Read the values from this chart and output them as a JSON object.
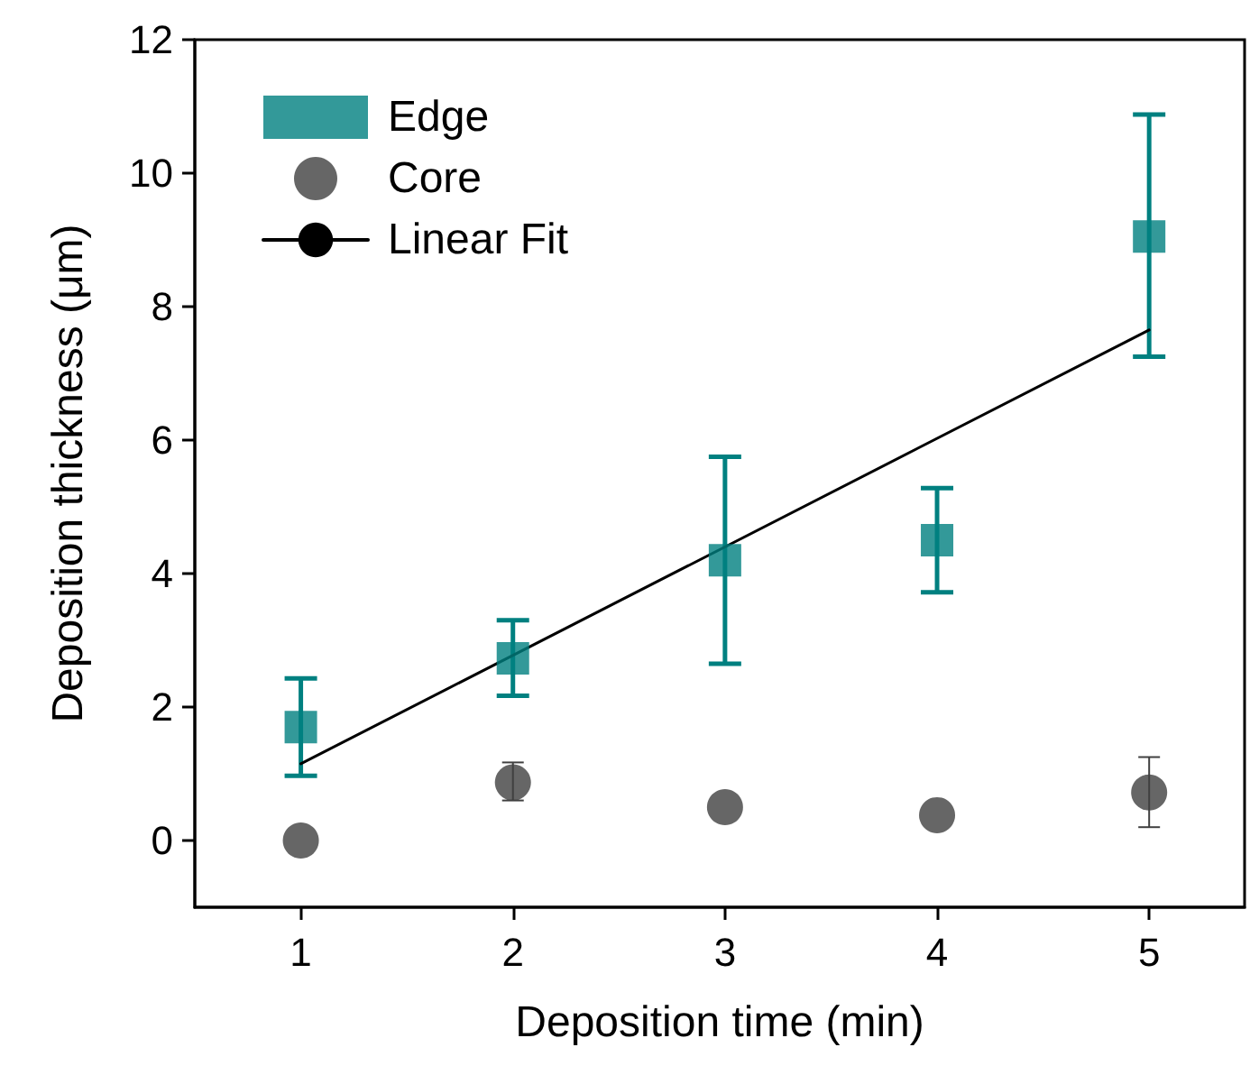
{
  "chart_data": {
    "type": "scatter",
    "xlabel": "Deposition time (min)",
    "ylabel": "Deposition thickness (μm)",
    "x": [
      1,
      2,
      3,
      4,
      5
    ],
    "series": [
      {
        "name": "Edge",
        "color": "#008080",
        "marker": "square",
        "values": [
          1.7,
          2.73,
          4.2,
          4.5,
          9.05
        ],
        "errors": [
          [
            0.97,
            2.43
          ],
          [
            2.17,
            3.3
          ],
          [
            2.65,
            5.75
          ],
          [
            3.72,
            5.28
          ],
          [
            7.25,
            10.88
          ]
        ]
      },
      {
        "name": "Core",
        "color": "#404040",
        "marker": "circle",
        "values": [
          0.0,
          0.87,
          0.5,
          0.38,
          0.72
        ],
        "errors": [
          null,
          [
            0.6,
            1.17
          ],
          null,
          null,
          [
            0.2,
            1.25
          ]
        ]
      },
      {
        "name": "Linear Fit",
        "type": "line",
        "color": "#000000",
        "marker": "none",
        "x": [
          1,
          5
        ],
        "values": [
          1.15,
          7.65
        ]
      }
    ],
    "xlim": [
      0.5,
      5.45
    ],
    "xticks": [
      1,
      2,
      3,
      4,
      5
    ],
    "ylim": [
      -1,
      12
    ],
    "yticks": [
      0,
      2,
      4,
      6,
      8,
      10,
      12
    ],
    "grid": false,
    "legend": "top left"
  }
}
